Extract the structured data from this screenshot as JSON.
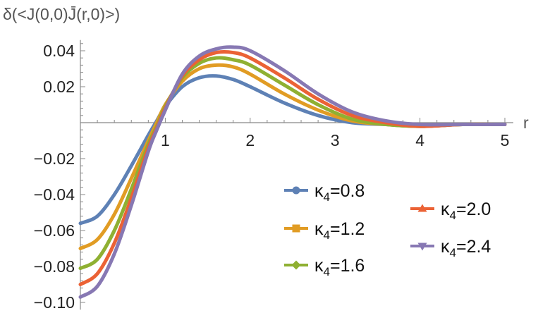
{
  "chart_data": {
    "type": "line",
    "ylabel": "δ(<J(0,0)J̄(r,0)>)",
    "xlabel": "r",
    "xlim": [
      0,
      5
    ],
    "ylim": [
      -0.104,
      0.046
    ],
    "x_ticks": [
      {
        "value": 1,
        "label": "1"
      },
      {
        "value": 2,
        "label": "2"
      },
      {
        "value": 3,
        "label": "3"
      },
      {
        "value": 4,
        "label": "4"
      },
      {
        "value": 5,
        "label": "5"
      }
    ],
    "y_ticks": [
      {
        "value": 0.04,
        "label": "0.04"
      },
      {
        "value": 0.02,
        "label": "0.02"
      },
      {
        "value": -0.02,
        "label": "−0.02"
      },
      {
        "value": -0.04,
        "label": "−0.04"
      },
      {
        "value": -0.06,
        "label": "−0.06"
      },
      {
        "value": -0.08,
        "label": "−0.08"
      },
      {
        "value": -0.1,
        "label": "−0.10"
      }
    ],
    "grid": false,
    "legend_position": "bottom-right",
    "series": [
      {
        "name": "κ4=0.8",
        "legend_label": "=0.8",
        "color": "#5e81b5",
        "marker": "circle",
        "x": [
          0,
          0.2,
          0.4,
          0.6,
          0.8,
          0.9,
          1.0,
          1.2,
          1.4,
          1.6,
          1.8,
          2.0,
          2.4,
          2.8,
          3.2,
          3.6,
          4.0,
          4.5,
          5.0
        ],
        "y": [
          -0.056,
          -0.052,
          -0.04,
          -0.024,
          -0.007,
          0.001,
          0.009,
          0.02,
          0.025,
          0.026,
          0.024,
          0.02,
          0.011,
          0.004,
          0.0,
          -0.001,
          -0.002,
          -0.001,
          -0.001
        ]
      },
      {
        "name": "κ4=1.2",
        "legend_label": "=1.2",
        "color": "#e19c24",
        "marker": "square",
        "x": [
          0,
          0.2,
          0.4,
          0.6,
          0.8,
          0.9,
          1.0,
          1.2,
          1.4,
          1.6,
          1.8,
          2.0,
          2.4,
          2.8,
          3.2,
          3.6,
          4.0,
          4.5,
          5.0
        ],
        "y": [
          -0.07,
          -0.065,
          -0.051,
          -0.031,
          -0.01,
          0.0,
          0.01,
          0.023,
          0.03,
          0.032,
          0.031,
          0.027,
          0.016,
          0.007,
          0.001,
          -0.001,
          -0.002,
          -0.001,
          -0.001
        ]
      },
      {
        "name": "κ4=1.6",
        "legend_label": "=1.6",
        "color": "#8fb032",
        "marker": "diamond",
        "x": [
          0,
          0.2,
          0.4,
          0.6,
          0.8,
          0.9,
          1.0,
          1.2,
          1.4,
          1.6,
          1.8,
          2.0,
          2.4,
          2.8,
          3.2,
          3.6,
          4.0,
          4.5,
          5.0
        ],
        "y": [
          -0.081,
          -0.076,
          -0.06,
          -0.037,
          -0.012,
          -0.002,
          0.009,
          0.025,
          0.033,
          0.036,
          0.035,
          0.032,
          0.021,
          0.01,
          0.002,
          -0.001,
          -0.002,
          -0.001,
          -0.001
        ]
      },
      {
        "name": "κ4=2.0",
        "legend_label": "=2.0",
        "color": "#eb6235",
        "marker": "triangle",
        "x": [
          0,
          0.2,
          0.4,
          0.6,
          0.8,
          0.9,
          1.0,
          1.2,
          1.4,
          1.6,
          1.8,
          2.0,
          2.4,
          2.8,
          3.2,
          3.6,
          4.0,
          4.5,
          5.0
        ],
        "y": [
          -0.09,
          -0.084,
          -0.067,
          -0.042,
          -0.014,
          -0.003,
          0.008,
          0.026,
          0.035,
          0.039,
          0.039,
          0.036,
          0.025,
          0.013,
          0.004,
          0.0,
          -0.002,
          -0.001,
          -0.001
        ]
      },
      {
        "name": "κ4=2.4",
        "legend_label": "=2.4",
        "color": "#8778b3",
        "marker": "inverted-triangle",
        "x": [
          0,
          0.2,
          0.4,
          0.6,
          0.8,
          0.9,
          1.0,
          1.2,
          1.4,
          1.6,
          1.8,
          2.0,
          2.4,
          2.8,
          3.2,
          3.6,
          4.0,
          4.5,
          5.0
        ],
        "y": [
          -0.097,
          -0.091,
          -0.073,
          -0.046,
          -0.016,
          -0.004,
          0.007,
          0.027,
          0.037,
          0.041,
          0.042,
          0.04,
          0.029,
          0.016,
          0.006,
          0.001,
          -0.001,
          -0.001,
          -0.001
        ]
      }
    ]
  }
}
